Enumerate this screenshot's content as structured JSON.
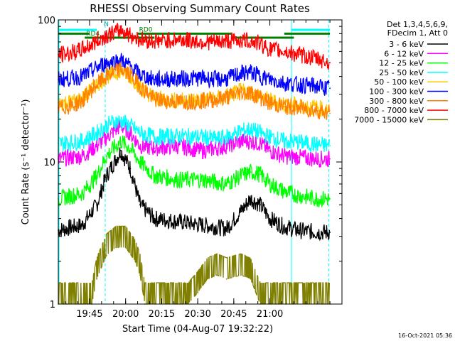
{
  "chart_data": {
    "type": "line",
    "title": "RHESSI Observing Summary Count Rates",
    "xlabel": "Start Time (04-Aug-07 19:32:22)",
    "ylabel": "Count Rate (s⁻¹ detector⁻¹)",
    "yscale": "log",
    "ylim": [
      1,
      100
    ],
    "xlim_min": [
      0,
      118
    ],
    "x_ticks": [
      {
        "min": 13,
        "label": "19:45"
      },
      {
        "min": 28,
        "label": "20:00"
      },
      {
        "min": 43,
        "label": "20:15"
      },
      {
        "min": 58,
        "label": "20:30"
      },
      {
        "min": 73,
        "label": "20:45"
      },
      {
        "min": 88,
        "label": "21:00"
      }
    ],
    "y_ticks": [
      {
        "value": 1,
        "label": "1"
      },
      {
        "value": 10,
        "label": "10"
      },
      {
        "value": 100,
        "label": "100"
      }
    ],
    "legend_header": [
      "Det 1,3,4,5,6,9,",
      "FDecim 1, Att 0"
    ],
    "series": [
      {
        "name": "3 - 6 keV",
        "color": "#000000",
        "points": [
          [
            0,
            3.3
          ],
          [
            10,
            3.6
          ],
          [
            16,
            5
          ],
          [
            20,
            8
          ],
          [
            26,
            12
          ],
          [
            30,
            9
          ],
          [
            34,
            5
          ],
          [
            40,
            4
          ],
          [
            50,
            3.8
          ],
          [
            60,
            3.6
          ],
          [
            70,
            3.4
          ],
          [
            76,
            4.5
          ],
          [
            80,
            5.5
          ],
          [
            84,
            5
          ],
          [
            88,
            4
          ],
          [
            94,
            3.5
          ],
          [
            100,
            3.3
          ],
          [
            108,
            3.2
          ],
          [
            113,
            3.2
          ]
        ]
      },
      {
        "name": "6 - 12 keV",
        "color": "#ff00ff",
        "points": [
          [
            0,
            10.5
          ],
          [
            10,
            11
          ],
          [
            16,
            13
          ],
          [
            22,
            16
          ],
          [
            26,
            18
          ],
          [
            30,
            16
          ],
          [
            34,
            13
          ],
          [
            40,
            12.5
          ],
          [
            50,
            13
          ],
          [
            60,
            12
          ],
          [
            66,
            12.5
          ],
          [
            70,
            13
          ],
          [
            76,
            14
          ],
          [
            80,
            14
          ],
          [
            84,
            13.5
          ],
          [
            88,
            12
          ],
          [
            94,
            11
          ],
          [
            100,
            10.8
          ],
          [
            108,
            10.5
          ],
          [
            113,
            10.5
          ]
        ]
      },
      {
        "name": "12 - 25 keV",
        "color": "#00ff00",
        "points": [
          [
            0,
            5.5
          ],
          [
            10,
            6
          ],
          [
            16,
            8
          ],
          [
            20,
            11
          ],
          [
            26,
            14
          ],
          [
            30,
            12.5
          ],
          [
            34,
            10
          ],
          [
            40,
            8
          ],
          [
            50,
            7.5
          ],
          [
            60,
            7.5
          ],
          [
            70,
            7
          ],
          [
            76,
            8
          ],
          [
            80,
            8.5
          ],
          [
            84,
            8.2
          ],
          [
            88,
            7
          ],
          [
            94,
            6.2
          ],
          [
            100,
            5.8
          ],
          [
            108,
            5.5
          ],
          [
            113,
            5.5
          ]
        ]
      },
      {
        "name": "25 - 50 keV",
        "color": "#00ffff",
        "points": [
          [
            0,
            13.5
          ],
          [
            10,
            14
          ],
          [
            16,
            16
          ],
          [
            22,
            19
          ],
          [
            26,
            19.5
          ],
          [
            30,
            18
          ],
          [
            34,
            16
          ],
          [
            40,
            15
          ],
          [
            50,
            15.2
          ],
          [
            60,
            15
          ],
          [
            66,
            14.5
          ],
          [
            70,
            15
          ],
          [
            76,
            16.5
          ],
          [
            80,
            17
          ],
          [
            84,
            16
          ],
          [
            88,
            15
          ],
          [
            94,
            14
          ],
          [
            100,
            13.8
          ],
          [
            108,
            13.2
          ],
          [
            113,
            13
          ]
        ]
      },
      {
        "name": "50 - 100 keV",
        "color": "#ffc800",
        "points": [
          [
            0,
            26
          ],
          [
            6,
            26.5
          ],
          [
            10,
            28
          ],
          [
            15,
            34
          ],
          [
            20,
            40
          ],
          [
            26,
            44
          ],
          [
            30,
            40
          ],
          [
            34,
            34
          ],
          [
            40,
            28
          ],
          [
            50,
            27
          ],
          [
            60,
            27.5
          ],
          [
            66,
            28
          ],
          [
            70,
            29
          ],
          [
            76,
            31.5
          ],
          [
            80,
            31
          ],
          [
            84,
            29
          ],
          [
            88,
            27
          ],
          [
            94,
            25.5
          ],
          [
            100,
            25
          ],
          [
            108,
            24
          ],
          [
            113,
            23
          ]
        ]
      },
      {
        "name": "100 - 300 keV",
        "color": "#0000ff",
        "points": [
          [
            0,
            38
          ],
          [
            6,
            39
          ],
          [
            10,
            40
          ],
          [
            15,
            45
          ],
          [
            20,
            50
          ],
          [
            26,
            52
          ],
          [
            30,
            47
          ],
          [
            34,
            41
          ],
          [
            40,
            38
          ],
          [
            50,
            38.5
          ],
          [
            60,
            39
          ],
          [
            66,
            38
          ],
          [
            70,
            38.5
          ],
          [
            76,
            42
          ],
          [
            80,
            43
          ],
          [
            84,
            40
          ],
          [
            88,
            38
          ],
          [
            94,
            36
          ],
          [
            100,
            35
          ],
          [
            108,
            34
          ],
          [
            113,
            33
          ]
        ]
      },
      {
        "name": "300 - 800 keV",
        "color": "#ff8000",
        "points": [
          [
            0,
            24
          ],
          [
            6,
            25
          ],
          [
            10,
            27
          ],
          [
            15,
            34
          ],
          [
            20,
            40
          ],
          [
            26,
            45
          ],
          [
            30,
            41
          ],
          [
            34,
            34
          ],
          [
            40,
            27.5
          ],
          [
            50,
            26.5
          ],
          [
            60,
            27
          ],
          [
            66,
            27.5
          ],
          [
            70,
            28.5
          ],
          [
            76,
            31
          ],
          [
            80,
            30.5
          ],
          [
            84,
            28.5
          ],
          [
            88,
            26
          ],
          [
            94,
            24.5
          ],
          [
            100,
            24
          ],
          [
            108,
            23
          ],
          [
            113,
            22
          ]
        ]
      },
      {
        "name": "800 - 7000 keV",
        "color": "#ff0000",
        "points": [
          [
            0,
            57
          ],
          [
            4,
            58
          ],
          [
            8,
            60
          ],
          [
            13,
            66
          ],
          [
            20,
            78
          ],
          [
            24,
            82
          ],
          [
            26,
            85
          ],
          [
            30,
            78
          ],
          [
            34,
            73
          ],
          [
            40,
            71
          ],
          [
            46,
            72
          ],
          [
            50,
            73
          ],
          [
            60,
            70
          ],
          [
            66,
            70
          ],
          [
            70,
            71
          ],
          [
            76,
            72
          ],
          [
            80,
            71
          ],
          [
            84,
            68
          ],
          [
            88,
            62
          ],
          [
            94,
            60
          ],
          [
            100,
            57
          ],
          [
            108,
            53
          ],
          [
            113,
            50
          ]
        ]
      },
      {
        "name": "7000 - 15000 keV",
        "color": "#808000",
        "points": [
          [
            0,
            1
          ],
          [
            14,
            1
          ],
          [
            16,
            1.5
          ],
          [
            20,
            2.2
          ],
          [
            24,
            2.5
          ],
          [
            28,
            2.5
          ],
          [
            32,
            2
          ],
          [
            34,
            1.6
          ],
          [
            36,
            1
          ],
          [
            54,
            1
          ],
          [
            58,
            1.2
          ],
          [
            62,
            1.5
          ],
          [
            66,
            1.6
          ],
          [
            70,
            1.5
          ],
          [
            76,
            1.6
          ],
          [
            80,
            1.5
          ],
          [
            84,
            1
          ],
          [
            113,
            1
          ]
        ]
      }
    ],
    "annotations": {
      "attenuator_bars": [
        {
          "start": 11,
          "end": 40,
          "value": 75,
          "color": "#008000",
          "label": "RD4"
        },
        {
          "start": 0,
          "end": 13,
          "value": 80,
          "color": "#008000",
          "label": ""
        },
        {
          "start": 33,
          "end": 72,
          "value": 80,
          "color": "#008000",
          "label": "RD0"
        },
        {
          "start": 72,
          "end": 98,
          "value": 75,
          "color": "#008000",
          "label": ""
        },
        {
          "start": 94,
          "end": 113,
          "value": 80,
          "color": "#008000",
          "label": ""
        }
      ],
      "top_markers": [
        {
          "start": 0,
          "end": 16,
          "color": "#00ffff"
        },
        {
          "start": 97,
          "end": 113,
          "color": "#00ffff"
        }
      ],
      "n_label": "N",
      "n_label_at_min": 19,
      "vertical_lines": [
        {
          "min": 0.3,
          "style": "solid",
          "color": "#00ffff"
        },
        {
          "min": 19.5,
          "style": "dashed",
          "color": "#00ffff"
        },
        {
          "min": 97,
          "style": "solid",
          "color": "#00ffff"
        },
        {
          "min": 112.5,
          "style": "dashed",
          "color": "#00ffff"
        }
      ]
    },
    "footer_timestamp": "16-Oct-2021 05:36"
  }
}
